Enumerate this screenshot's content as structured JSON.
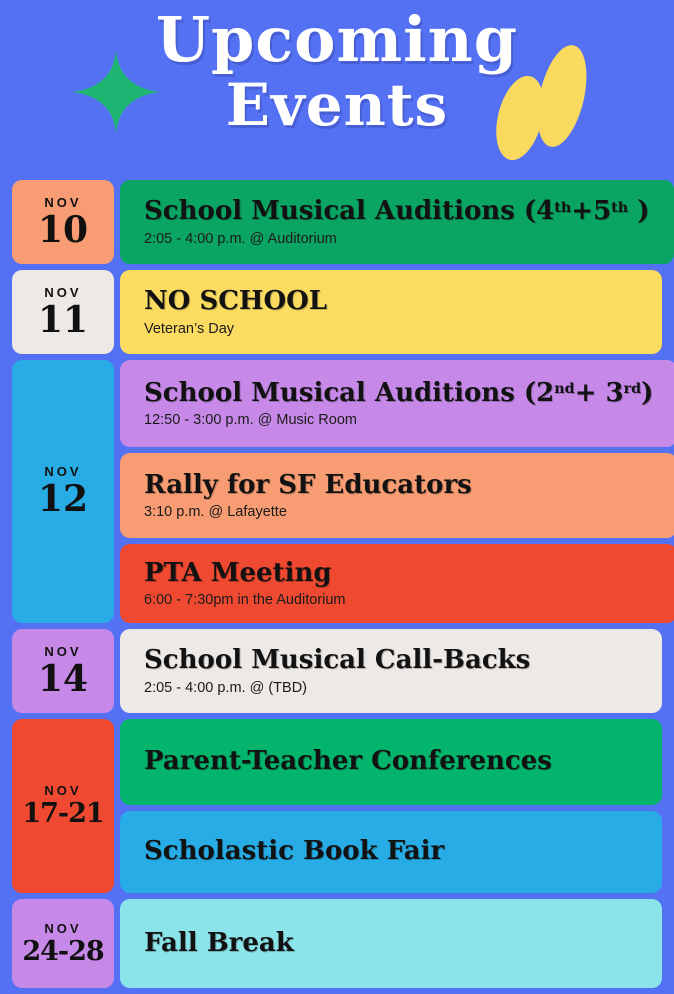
{
  "palette": {
    "background": "#5471F3",
    "salmon": "#F89C73",
    "green_dark": "#0AA463",
    "green_bright": "#02B46C",
    "offwhite": "#EDE9E6",
    "yellow": "#FBDB60",
    "sky_blue": "#27ACE5",
    "purple": "#C689E8",
    "red": "#EF4A31",
    "cyan": "#8BE4EA",
    "sparkle_green": "#1EB573",
    "blob_yellow": "#F9D95E",
    "title_white": "#FFFFFF"
  },
  "header": {
    "title_line1": "Upcoming",
    "title_line2": "Events"
  },
  "events": [
    {
      "date": {
        "month": "NOV",
        "day": "10"
      },
      "cards": [
        {
          "title_rich": [
            {
              "t": "School Musical Auditions (4"
            },
            {
              "t": "th",
              "sup": true
            },
            {
              "t": "+5"
            },
            {
              "t": "th",
              "sup": true
            },
            {
              "t": " )"
            }
          ],
          "subtitle": "2:05 - 4:00 p.m. @ Auditorium"
        }
      ]
    },
    {
      "date": {
        "month": "NOV",
        "day": "11"
      },
      "cards": [
        {
          "title": "NO SCHOOL",
          "subtitle": "Veteran’s Day"
        }
      ]
    },
    {
      "date": {
        "month": "NOV",
        "day": "12"
      },
      "cards": [
        {
          "title_rich": [
            {
              "t": "School Musical Auditions (2"
            },
            {
              "t": "nd",
              "sup": true
            },
            {
              "t": "+ 3"
            },
            {
              "t": "rd",
              "sup": true
            },
            {
              "t": ")"
            }
          ],
          "subtitle": "12:50 - 3:00 p.m. @ Music Room"
        },
        {
          "title": "Rally for SF Educators",
          "subtitle": "3:10 p.m. @ Lafayette"
        },
        {
          "title": "PTA Meeting",
          "subtitle": "6:00 - 7:30pm in the Auditorium"
        }
      ]
    },
    {
      "date": {
        "month": "NOV",
        "day": "14"
      },
      "cards": [
        {
          "title": "School Musical Call-Backs",
          "subtitle": "2:05 - 4:00 p.m. @ (TBD)"
        }
      ]
    },
    {
      "date": {
        "month": "NOV",
        "day": "17-21"
      },
      "cards": [
        {
          "title": "Parent-Teacher Conferences"
        },
        {
          "title": "Scholastic Book Fair"
        }
      ]
    },
    {
      "date": {
        "month": "NOV",
        "day": "24-28"
      },
      "cards": [
        {
          "title": "Fall Break"
        }
      ]
    }
  ]
}
